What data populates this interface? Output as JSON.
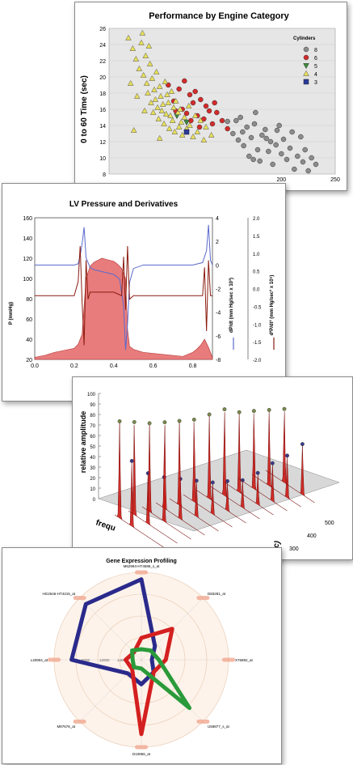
{
  "colors": {
    "cyl8": "#8c8c8c",
    "cyl6": "#d42a2a",
    "cyl5": "#3a8a3a",
    "cyl4": "#e8e05a",
    "cyl3": "#2a3a9a",
    "plot_bg": "#e6e6e6",
    "lv_blue": "#5a6acd",
    "lv_darkred": "#8a1c10",
    "lv_fill": "#e87c7c",
    "peak_red": "#cc1a14",
    "radar_blue": "#2a2a8c",
    "radar_red": "#d42020",
    "radar_green": "#2a9a3a"
  },
  "chart_data": [
    {
      "type": "scatter",
      "title": "Performance by Engine Category",
      "ylabel": "0 to 60 Time (sec)",
      "xlabel": "",
      "ylim": [
        8,
        26
      ],
      "xlim": [
        40,
        250
      ],
      "yticks": [
        "8",
        "10",
        "12",
        "14",
        "16",
        "18",
        "20",
        "22",
        "24",
        "26"
      ],
      "xticks": [
        "200",
        "250"
      ],
      "legend": {
        "title": "Cylinders",
        "position": "top-right"
      },
      "series": [
        {
          "name": "8",
          "marker": "circle",
          "color": "#8c8c8c",
          "points": [
            [
              150,
              14.5
            ],
            [
              155,
              13
            ],
            [
              160,
              12.2
            ],
            [
              162,
              15
            ],
            [
              165,
              11.5
            ],
            [
              168,
              13.8
            ],
            [
              170,
              10.2
            ],
            [
              172,
              12.5
            ],
            [
              175,
              14.2
            ],
            [
              178,
              11
            ],
            [
              180,
              9.6
            ],
            [
              182,
              12.8
            ],
            [
              185,
              13.5
            ],
            [
              188,
              10.8
            ],
            [
              190,
              12
            ],
            [
              192,
              9.2
            ],
            [
              195,
              11.6
            ],
            [
              198,
              14
            ],
            [
              200,
              10.5
            ],
            [
              202,
              12.3
            ],
            [
              205,
              9.8
            ],
            [
              208,
              11.2
            ],
            [
              210,
              13.2
            ],
            [
              212,
              8.6
            ],
            [
              215,
              10.2
            ],
            [
              218,
              12.6
            ],
            [
              220,
              9.5
            ],
            [
              222,
              11
            ],
            [
              225,
              8.4
            ],
            [
              228,
              10
            ],
            [
              232,
              9.2
            ],
            [
              158,
              14.6
            ],
            [
              176,
              15.6
            ],
            [
              186,
              12.4
            ],
            [
              196,
              13.4
            ],
            [
              174,
              9.8
            ],
            [
              164,
              13.2
            ]
          ]
        },
        {
          "name": "6",
          "marker": "circle",
          "color": "#d42a2a",
          "points": [
            [
              100,
              17
            ],
            [
              105,
              18.5
            ],
            [
              108,
              16
            ],
            [
              110,
              19.5
            ],
            [
              112,
              15.5
            ],
            [
              115,
              17.8
            ],
            [
              118,
              16.8
            ],
            [
              120,
              18.2
            ],
            [
              122,
              15.2
            ],
            [
              125,
              17.2
            ],
            [
              128,
              14.8
            ],
            [
              130,
              16.4
            ],
            [
              133,
              15.8
            ],
            [
              136,
              14.2
            ],
            [
              140,
              15.6
            ],
            [
              145,
              14.6
            ],
            [
              150,
              13.6
            ],
            [
              95,
              19
            ],
            [
              102,
              15.8
            ],
            [
              116,
              14.6
            ],
            [
              124,
              13.8
            ],
            [
              138,
              16.8
            ]
          ]
        },
        {
          "name": "5",
          "marker": "triangle-down",
          "color": "#3a8a3a",
          "points": [
            [
              103,
              15.2
            ],
            [
              112,
              14.4
            ]
          ]
        },
        {
          "name": "4",
          "marker": "triangle",
          "color": "#e8e05a",
          "points": [
            [
              58,
              24.8
            ],
            [
              62,
              23.5
            ],
            [
              65,
              22.2
            ],
            [
              68,
              21
            ],
            [
              70,
              24.2
            ],
            [
              72,
              20.2
            ],
            [
              74,
              22.6
            ],
            [
              75,
              19.2
            ],
            [
              76,
              18
            ],
            [
              78,
              21.6
            ],
            [
              79,
              16.8
            ],
            [
              80,
              19.8
            ],
            [
              81,
              15.6
            ],
            [
              82,
              18.4
            ],
            [
              83,
              17.2
            ],
            [
              84,
              20.6
            ],
            [
              85,
              16.2
            ],
            [
              86,
              14.8
            ],
            [
              87,
              18.8
            ],
            [
              88,
              17.6
            ],
            [
              89,
              15.8
            ],
            [
              90,
              16.6
            ],
            [
              91,
              14.2
            ],
            [
              92,
              19.4
            ],
            [
              93,
              15.4
            ],
            [
              94,
              17.8
            ],
            [
              95,
              16.8
            ],
            [
              96,
              13.6
            ],
            [
              97,
              15.2
            ],
            [
              98,
              18.2
            ],
            [
              99,
              14.6
            ],
            [
              100,
              16.2
            ],
            [
              101,
              13.2
            ],
            [
              102,
              17
            ],
            [
              104,
              15.6
            ],
            [
              105,
              13.8
            ],
            [
              106,
              16
            ],
            [
              107,
              14.4
            ],
            [
              108,
              12.8
            ],
            [
              110,
              15
            ],
            [
              112,
              13.6
            ],
            [
              114,
              16.4
            ],
            [
              115,
              14
            ],
            [
              118,
              12.6
            ],
            [
              120,
              15.2
            ],
            [
              122,
              13.2
            ],
            [
              125,
              14.6
            ],
            [
              128,
              12.2
            ],
            [
              130,
              13.8
            ],
            [
              135,
              12.8
            ],
            [
              60,
              19.2
            ],
            [
              66,
              17.6
            ],
            [
              71,
              25.4
            ],
            [
              77,
              23.8
            ],
            [
              63,
              13.4
            ],
            [
              73,
              15.8
            ],
            [
              87,
              12.4
            ]
          ]
        },
        {
          "name": "3",
          "marker": "square",
          "color": "#2a3a9a",
          "points": [
            [
              112,
              13.2
            ]
          ]
        }
      ]
    },
    {
      "type": "line",
      "title": "LV Pressure and Derivatives",
      "ylabel": "P (mmHg)",
      "y2label": "dP/dt (mm Hg/sec x 10³)",
      "y3label": "d²P/dt² (mm Hg/sec² x 10⁵)",
      "xlim": [
        0,
        0.9
      ],
      "ylim": [
        20,
        160
      ],
      "y2lim": [
        -8,
        4
      ],
      "y3lim": [
        -2.0,
        2.0
      ],
      "xticks": [
        "0.0",
        "0.2",
        "0.4",
        "0.6",
        "0.8"
      ],
      "yticks": [
        "20",
        "40",
        "60",
        "80",
        "100",
        "120",
        "140",
        "160"
      ],
      "y2ticks": [
        "-8",
        "-6",
        "-4",
        "-2",
        "0",
        "2",
        "4"
      ],
      "y3ticks": [
        "-2.0",
        "-1.5",
        "-1.0",
        "-0.5",
        "0.0",
        "0.5",
        "1.0",
        "1.5",
        "2.0"
      ],
      "series": [
        {
          "name": "P",
          "axis": "y",
          "color": "#e87c7c",
          "x": [
            0,
            0.05,
            0.1,
            0.15,
            0.2,
            0.22,
            0.24,
            0.26,
            0.28,
            0.3,
            0.32,
            0.34,
            0.36,
            0.38,
            0.4,
            0.42,
            0.44,
            0.46,
            0.47,
            0.48,
            0.5,
            0.55,
            0.6,
            0.65,
            0.7,
            0.75,
            0.8,
            0.82,
            0.84,
            0.86,
            0.88,
            0.9
          ],
          "y": [
            22,
            24,
            27,
            29,
            31,
            35,
            45,
            100,
            112,
            116,
            118,
            120,
            119,
            118,
            117,
            114,
            110,
            100,
            50,
            33,
            30,
            27,
            26,
            25,
            24,
            23,
            27,
            30,
            34,
            40,
            32,
            22
          ]
        },
        {
          "name": "dP/dt",
          "axis": "y2",
          "color": "#5a6acd",
          "x": [
            0,
            0.05,
            0.1,
            0.15,
            0.2,
            0.22,
            0.23,
            0.24,
            0.25,
            0.26,
            0.28,
            0.3,
            0.35,
            0.4,
            0.43,
            0.45,
            0.46,
            0.47,
            0.48,
            0.5,
            0.55,
            0.6,
            0.7,
            0.8,
            0.85,
            0.87,
            0.88,
            0.89,
            0.9
          ],
          "y": [
            0,
            0,
            0,
            0,
            0,
            0.1,
            0.8,
            1.8,
            3.2,
            0.6,
            -0.2,
            -0.4,
            -0.6,
            -0.8,
            -1.2,
            -3.5,
            -7.2,
            -5,
            -1.5,
            -0.3,
            0,
            0,
            0,
            0,
            0.2,
            1.2,
            3.4,
            0.4,
            0
          ]
        },
        {
          "name": "d²P/dt²",
          "axis": "y3",
          "color": "#8a1c10",
          "x": [
            0,
            0.1,
            0.2,
            0.22,
            0.23,
            0.24,
            0.25,
            0.26,
            0.27,
            0.28,
            0.3,
            0.35,
            0.4,
            0.44,
            0.45,
            0.46,
            0.47,
            0.48,
            0.5,
            0.6,
            0.7,
            0.8,
            0.85,
            0.86,
            0.87,
            0.88,
            0.89,
            0.9
          ],
          "y": [
            -0.2,
            -0.2,
            -0.2,
            0.2,
            1.2,
            -0.4,
            -1.6,
            0.8,
            -0.3,
            -0.1,
            -0.1,
            -0.1,
            -0.1,
            -0.2,
            0.9,
            -0.6,
            1.2,
            -0.3,
            -0.2,
            -0.2,
            -0.2,
            -0.2,
            -0.2,
            0.6,
            -1.2,
            0.8,
            -0.2,
            -0.2
          ]
        }
      ]
    },
    {
      "type": "area",
      "title": "",
      "zlabel": "relative amplitude",
      "xlabel": "frequ",
      "ylabel": "sec)",
      "zlim": [
        0,
        100
      ],
      "zticks": [
        "0",
        "10",
        "20",
        "30",
        "40",
        "50",
        "60",
        "70",
        "80",
        "90",
        "100"
      ],
      "depth_ticks": [
        "300",
        "400",
        "500"
      ],
      "slices": [
        {
          "depth": 0,
          "peaks": [
            [
              0.1,
              92
            ],
            [
              0.35,
              62
            ]
          ]
        },
        {
          "depth": 1,
          "peaks": [
            [
              0.12,
              88
            ],
            [
              0.4,
              48
            ]
          ]
        },
        {
          "depth": 2,
          "peaks": [
            [
              0.15,
              84
            ],
            [
              0.45,
              42
            ]
          ]
        },
        {
          "depth": 3,
          "peaks": [
            [
              0.18,
              82
            ],
            [
              0.5,
              38
            ]
          ]
        },
        {
          "depth": 4,
          "peaks": [
            [
              0.2,
              80
            ],
            [
              0.55,
              34
            ]
          ]
        },
        {
          "depth": 5,
          "peaks": [
            [
              0.22,
              78
            ],
            [
              0.6,
              30
            ]
          ]
        },
        {
          "depth": 6,
          "peaks": [
            [
              0.25,
              80
            ],
            [
              0.62,
              28
            ]
          ]
        },
        {
          "depth": 7,
          "peaks": [
            [
              0.28,
              82
            ],
            [
              0.65,
              26
            ]
          ]
        },
        {
          "depth": 8,
          "peaks": [
            [
              0.3,
              76
            ],
            [
              0.68,
              30
            ]
          ]
        },
        {
          "depth": 9,
          "peaks": [
            [
              0.32,
              74
            ],
            [
              0.7,
              36
            ]
          ]
        },
        {
          "depth": 10,
          "peaks": [
            [
              0.35,
              72
            ],
            [
              0.72,
              40
            ]
          ]
        },
        {
          "depth": 11,
          "peaks": [
            [
              0.38,
              70
            ],
            [
              0.75,
              48
            ]
          ]
        }
      ]
    },
    {
      "type": "radar",
      "title": "Gene Expression Profiling",
      "axes": [
        "M62994-HT4696_s_at",
        "D83281_at",
        "X76892_at",
        "U59877_s_at",
        "D10856_at",
        "M97676_at",
        "L40904_at",
        "HG2646-HT4215_at"
      ],
      "rings": [
        "14000",
        "12000",
        "8000"
      ],
      "series": [
        {
          "name": "blue",
          "color": "#2a2a8c",
          "values": [
            0.92,
            0.22,
            0.12,
            0.2,
            0.28,
            0.22,
            0.8,
            0.9
          ]
        },
        {
          "name": "red",
          "color": "#d42020",
          "values": [
            0.25,
            0.5,
            0.28,
            0.2,
            0.85,
            0.15,
            0.18,
            0.12
          ]
        },
        {
          "name": "green",
          "color": "#2a9a3a",
          "values": [
            0.12,
            0.15,
            0.2,
            0.78,
            0.1,
            0.12,
            0.1,
            0.15
          ]
        }
      ]
    }
  ]
}
